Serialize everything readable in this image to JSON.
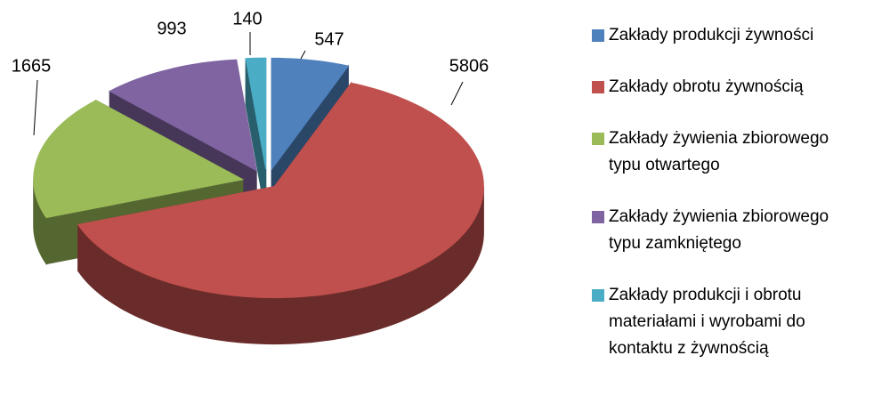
{
  "chart_data": {
    "type": "pie3d",
    "categories": [
      "Zakłady produkcji żywności",
      "Zakłady obrotu żywnością",
      "Zakłady żywienia zbiorowego typu otwartego",
      "Zakłady żywienia zbiorowego typu zamkniętego",
      "Zakłady produkcji i obrotu materiałami i wyrobami do kontaktu z żywnością"
    ],
    "values": [
      547,
      5806,
      1665,
      993,
      140
    ],
    "colors": [
      "#4f81bd",
      "#c0504d",
      "#9bbb59",
      "#8064a2",
      "#4bacc6"
    ],
    "legend": "right"
  }
}
